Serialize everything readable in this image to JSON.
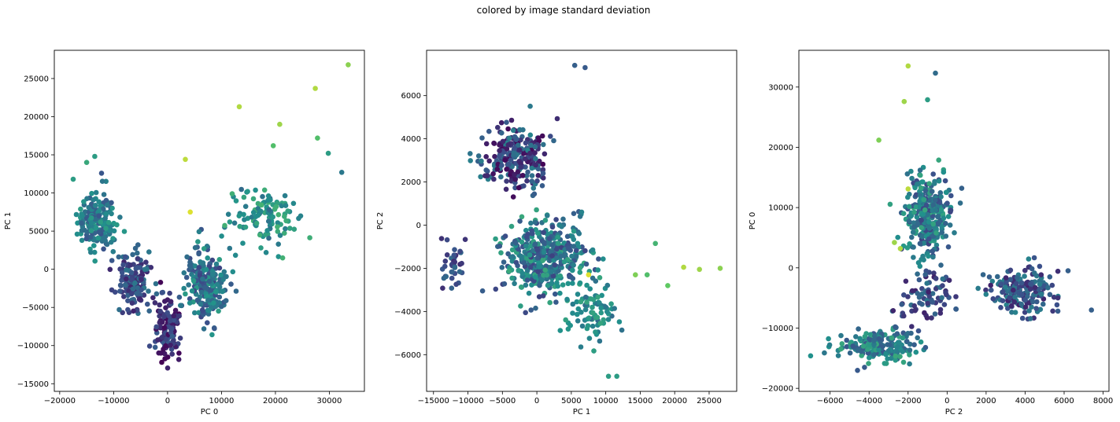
{
  "figure": {
    "suptitle": "colored by image standard deviation",
    "colormap": [
      "#440154",
      "#3b528b",
      "#21918c",
      "#5ec962",
      "#fde725"
    ]
  },
  "chart_data": [
    {
      "type": "scatter",
      "xlabel": "PC 0",
      "ylabel": "PC 1",
      "xlim": [
        -21000,
        36500
      ],
      "ylim": [
        -16000,
        28700
      ],
      "xticks": [
        -20000,
        -10000,
        0,
        10000,
        20000,
        30000
      ],
      "yticks": [
        -15000,
        -10000,
        -5000,
        0,
        5000,
        10000,
        15000,
        20000,
        25000
      ],
      "grid": false,
      "clusters": [
        {
          "center": [
            -13000,
            6500
          ],
          "spread": [
            3000,
            3500
          ],
          "n": 170,
          "color_range": [
            0.25,
            0.55
          ]
        },
        {
          "center": [
            -6000,
            -1500
          ],
          "spread": [
            2500,
            3000
          ],
          "n": 140,
          "color_range": [
            0.1,
            0.4
          ]
        },
        {
          "center": [
            0,
            -8000
          ],
          "spread": [
            2200,
            3000
          ],
          "n": 120,
          "color_range": [
            0.0,
            0.3
          ]
        },
        {
          "center": [
            7000,
            -2000
          ],
          "spread": [
            3000,
            4000
          ],
          "n": 220,
          "color_range": [
            0.2,
            0.55
          ]
        },
        {
          "center": [
            18000,
            7000
          ],
          "spread": [
            6000,
            3500
          ],
          "n": 110,
          "color_range": [
            0.35,
            0.65
          ]
        }
      ],
      "points": [
        {
          "x": 3300,
          "y": 14400,
          "c": 0.9
        },
        {
          "x": 13300,
          "y": 21300,
          "c": 0.88
        },
        {
          "x": 20800,
          "y": 19000,
          "c": 0.85
        },
        {
          "x": 27400,
          "y": 23700,
          "c": 0.88
        },
        {
          "x": 33500,
          "y": 26800,
          "c": 0.82
        },
        {
          "x": 4200,
          "y": 7500,
          "c": 0.95
        },
        {
          "x": 19600,
          "y": 16200,
          "c": 0.7
        },
        {
          "x": 27800,
          "y": 17200,
          "c": 0.7
        },
        {
          "x": -17500,
          "y": 11800,
          "c": 0.55
        },
        {
          "x": -13500,
          "y": 14800,
          "c": 0.55
        },
        {
          "x": -15000,
          "y": 14000,
          "c": 0.6
        },
        {
          "x": 32300,
          "y": 12700,
          "c": 0.4
        },
        {
          "x": 29800,
          "y": 15200,
          "c": 0.55
        }
      ]
    },
    {
      "type": "scatter",
      "xlabel": "PC 1",
      "ylabel": "PC 2",
      "xlim": [
        -16000,
        29000
      ],
      "ylim": [
        -7700,
        8100
      ],
      "xticks": [
        -15000,
        -10000,
        -5000,
        0,
        5000,
        10000,
        15000,
        20000,
        25000
      ],
      "yticks": [
        -6000,
        -4000,
        -2000,
        0,
        2000,
        4000,
        6000
      ],
      "grid": false,
      "clusters": [
        {
          "center": [
            -3000,
            3200
          ],
          "spread": [
            4000,
            1200
          ],
          "n": 260,
          "color_range": [
            0.0,
            0.45
          ]
        },
        {
          "center": [
            1000,
            -1500
          ],
          "spread": [
            5000,
            1400
          ],
          "n": 420,
          "color_range": [
            0.2,
            0.6
          ]
        },
        {
          "center": [
            8000,
            -4000
          ],
          "spread": [
            3000,
            1300
          ],
          "n": 90,
          "color_range": [
            0.35,
            0.6
          ]
        },
        {
          "center": [
            -12000,
            -2000
          ],
          "spread": [
            1500,
            800
          ],
          "n": 40,
          "color_range": [
            0.1,
            0.35
          ]
        }
      ],
      "points": [
        {
          "x": 21300,
          "y": -1950,
          "c": 0.88
        },
        {
          "x": 23600,
          "y": -2050,
          "c": 0.85
        },
        {
          "x": 26600,
          "y": -2000,
          "c": 0.82
        },
        {
          "x": 19000,
          "y": -2800,
          "c": 0.75
        },
        {
          "x": 14300,
          "y": -2300,
          "c": 0.8
        },
        {
          "x": 16000,
          "y": -2300,
          "c": 0.7
        },
        {
          "x": 17200,
          "y": -850,
          "c": 0.65
        },
        {
          "x": 7500,
          "y": -2300,
          "c": 0.95
        },
        {
          "x": 5500,
          "y": 7400,
          "c": 0.3
        },
        {
          "x": 7000,
          "y": 7300,
          "c": 0.28
        },
        {
          "x": 10400,
          "y": -7000,
          "c": 0.55
        },
        {
          "x": 11600,
          "y": -7000,
          "c": 0.55
        }
      ]
    },
    {
      "type": "scatter",
      "xlabel": "PC 2",
      "ylabel": "PC 0",
      "xlim": [
        -7600,
        8300
      ],
      "ylim": [
        -20500,
        36100
      ],
      "xticks": [
        -6000,
        -4000,
        -2000,
        0,
        2000,
        4000,
        6000,
        8000
      ],
      "yticks": [
        -20000,
        -10000,
        0,
        10000,
        20000,
        30000
      ],
      "grid": false,
      "clusters": [
        {
          "center": [
            -1000,
            9000
          ],
          "spread": [
            1000,
            5500
          ],
          "n": 330,
          "color_range": [
            0.2,
            0.6
          ]
        },
        {
          "center": [
            3800,
            -4000
          ],
          "spread": [
            1500,
            3000
          ],
          "n": 200,
          "color_range": [
            0.1,
            0.45
          ]
        },
        {
          "center": [
            -3500,
            -13000
          ],
          "spread": [
            1500,
            2200
          ],
          "n": 200,
          "color_range": [
            0.25,
            0.6
          ]
        },
        {
          "center": [
            -1000,
            -5000
          ],
          "spread": [
            1200,
            3500
          ],
          "n": 80,
          "color_range": [
            0.1,
            0.4
          ]
        }
      ],
      "points": [
        {
          "x": -2000,
          "y": 33500,
          "c": 0.88
        },
        {
          "x": -2200,
          "y": 27600,
          "c": 0.85
        },
        {
          "x": -1000,
          "y": 27900,
          "c": 0.55
        },
        {
          "x": -3500,
          "y": 21200,
          "c": 0.8
        },
        {
          "x": -2700,
          "y": 4200,
          "c": 0.85
        },
        {
          "x": -2400,
          "y": 3200,
          "c": 0.88
        },
        {
          "x": -2000,
          "y": 13100,
          "c": 0.9
        },
        {
          "x": -600,
          "y": 32300,
          "c": 0.35
        },
        {
          "x": -7000,
          "y": -14600,
          "c": 0.5
        },
        {
          "x": 7400,
          "y": -7000,
          "c": 0.3
        },
        {
          "x": 6200,
          "y": -500,
          "c": 0.3
        }
      ]
    }
  ]
}
